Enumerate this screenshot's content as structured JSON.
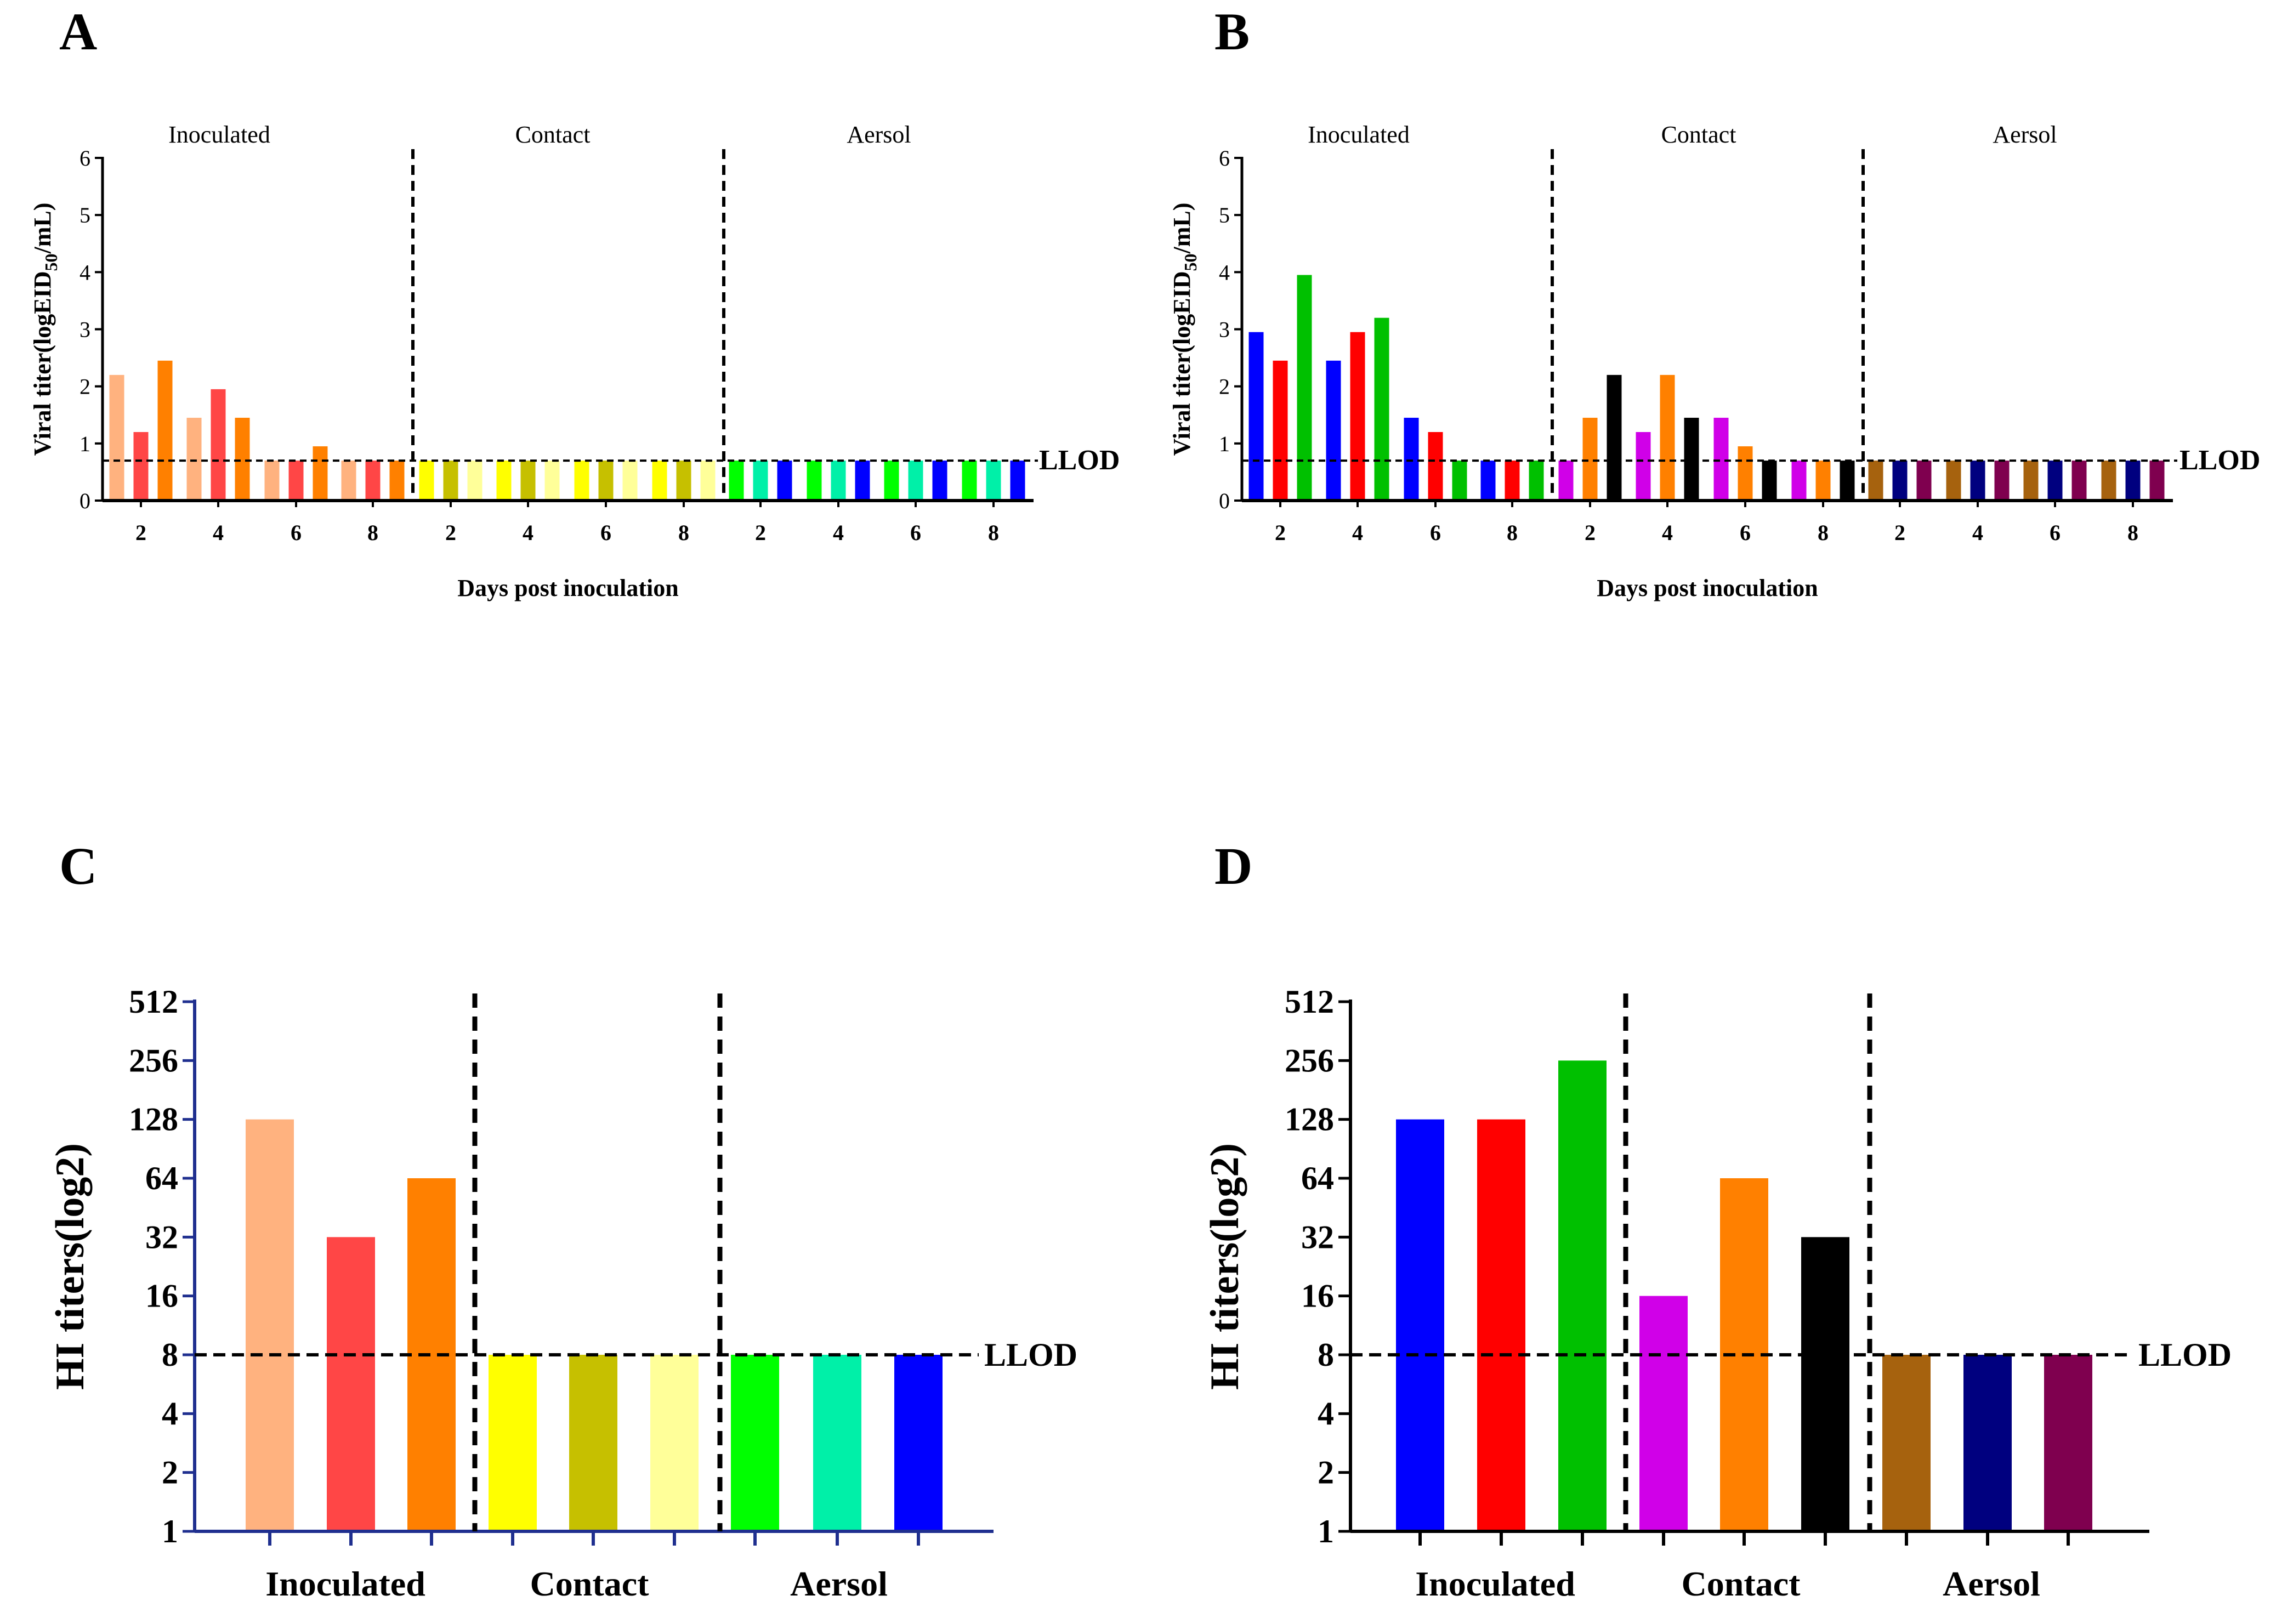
{
  "panel_labels": [
    "A",
    "B",
    "C",
    "D"
  ],
  "chart_data": [
    {
      "panel": "A",
      "type": "bar",
      "ylabel": "Viral titer(logEID50/mL)",
      "ylabel_main": "Viral titer(logEID",
      "ylabel_sub": "50",
      "ylabel_tail": "/mL)",
      "xlabel": "Days post inoculation",
      "ylim": [
        0,
        6
      ],
      "yticks": [
        "0",
        "1",
        "2",
        "3",
        "4",
        "5",
        "6"
      ],
      "llod_value": 0.7,
      "llod_label": "LLOD",
      "groups": [
        {
          "name": "Inoculated",
          "days": [
            "2",
            "4",
            "6",
            "8"
          ],
          "colors": [
            "#FFB27F",
            "#FF4646",
            "#FF8000"
          ],
          "values": [
            [
              2.2,
              1.2,
              2.45
            ],
            [
              1.45,
              1.95,
              1.45
            ],
            [
              0.7,
              0.7,
              0.95
            ],
            [
              0.7,
              0.7,
              0.7
            ]
          ]
        },
        {
          "name": "Contact",
          "days": [
            "2",
            "4",
            "6",
            "8"
          ],
          "colors": [
            "#FFFF00",
            "#C6C000",
            "#FFFF99"
          ],
          "values": [
            [
              0.7,
              0.7,
              0.7
            ],
            [
              0.7,
              0.7,
              0.7
            ],
            [
              0.7,
              0.7,
              0.7
            ],
            [
              0.7,
              0.7,
              0.7
            ]
          ]
        },
        {
          "name": "Aersol",
          "days": [
            "2",
            "4",
            "6",
            "8"
          ],
          "colors": [
            "#00FF00",
            "#00F0A8",
            "#0000FF"
          ],
          "values": [
            [
              0.7,
              0.7,
              0.7
            ],
            [
              0.7,
              0.7,
              0.7
            ],
            [
              0.7,
              0.7,
              0.7
            ],
            [
              0.7,
              0.7,
              0.7
            ]
          ]
        }
      ]
    },
    {
      "panel": "B",
      "type": "bar",
      "ylabel": "Viral titer(logEID50/mL)",
      "ylabel_main": "Viral titer(logEID",
      "ylabel_sub": "50",
      "ylabel_tail": "/mL)",
      "xlabel": "Days post inoculation",
      "ylim": [
        0,
        6
      ],
      "yticks": [
        "0",
        "1",
        "2",
        "3",
        "4",
        "5",
        "6"
      ],
      "llod_value": 0.7,
      "llod_label": "LLOD",
      "groups": [
        {
          "name": "Inoculated",
          "days": [
            "2",
            "4",
            "6",
            "8"
          ],
          "colors": [
            "#0000FF",
            "#FF0000",
            "#00C000"
          ],
          "values": [
            [
              2.95,
              2.45,
              3.95
            ],
            [
              2.45,
              2.95,
              3.2
            ],
            [
              1.45,
              1.2,
              0.7
            ],
            [
              0.7,
              0.7,
              0.7
            ]
          ]
        },
        {
          "name": "Contact",
          "days": [
            "2",
            "4",
            "6",
            "8"
          ],
          "colors": [
            "#D000E8",
            "#FF8000",
            "#000000"
          ],
          "values": [
            [
              0.7,
              1.45,
              2.2
            ],
            [
              1.2,
              2.2,
              1.45
            ],
            [
              1.45,
              0.95,
              0.7
            ],
            [
              0.7,
              0.7,
              0.7
            ]
          ]
        },
        {
          "name": "Aersol",
          "days": [
            "2",
            "4",
            "6",
            "8"
          ],
          "colors": [
            "#A6620E",
            "#00007F",
            "#7F004F"
          ],
          "values": [
            [
              0.7,
              0.7,
              0.7
            ],
            [
              0.7,
              0.7,
              0.7
            ],
            [
              0.7,
              0.7,
              0.7
            ],
            [
              0.7,
              0.7,
              0.7
            ]
          ]
        }
      ]
    },
    {
      "panel": "C",
      "type": "bar",
      "ylabel": "HI titers(log2)",
      "yscale": "log2",
      "ylim": [
        1,
        512
      ],
      "yticks": [
        "1",
        "2",
        "4",
        "8",
        "16",
        "32",
        "64",
        "128",
        "256",
        "512"
      ],
      "llod_value": 8,
      "llod_label": "LLOD",
      "groups": [
        {
          "name": "Inoculated",
          "colors": [
            "#FFB27F",
            "#FF4646",
            "#FF8000"
          ],
          "values": [
            128,
            32,
            64
          ]
        },
        {
          "name": "Contact",
          "colors": [
            "#FFFF00",
            "#C6C000",
            "#FFFF99"
          ],
          "values": [
            8,
            8,
            8
          ]
        },
        {
          "name": "Aersol",
          "colors": [
            "#00FF00",
            "#00F0A8",
            "#0000FF"
          ],
          "values": [
            8,
            8,
            8
          ]
        }
      ]
    },
    {
      "panel": "D",
      "type": "bar",
      "ylabel": "HI titers(log2)",
      "yscale": "log2",
      "ylim": [
        1,
        512
      ],
      "yticks": [
        "1",
        "2",
        "4",
        "8",
        "16",
        "32",
        "64",
        "128",
        "256",
        "512"
      ],
      "llod_value": 8,
      "llod_label": "LLOD",
      "groups": [
        {
          "name": "Inoculated",
          "colors": [
            "#0000FF",
            "#FF0000",
            "#00C000"
          ],
          "values": [
            128,
            128,
            256
          ]
        },
        {
          "name": "Contact",
          "colors": [
            "#D000E8",
            "#FF8000",
            "#000000"
          ],
          "values": [
            16,
            64,
            32
          ]
        },
        {
          "name": "Aersol",
          "colors": [
            "#A6620E",
            "#00007F",
            "#7F004F"
          ],
          "values": [
            8,
            8,
            8
          ]
        }
      ]
    }
  ]
}
